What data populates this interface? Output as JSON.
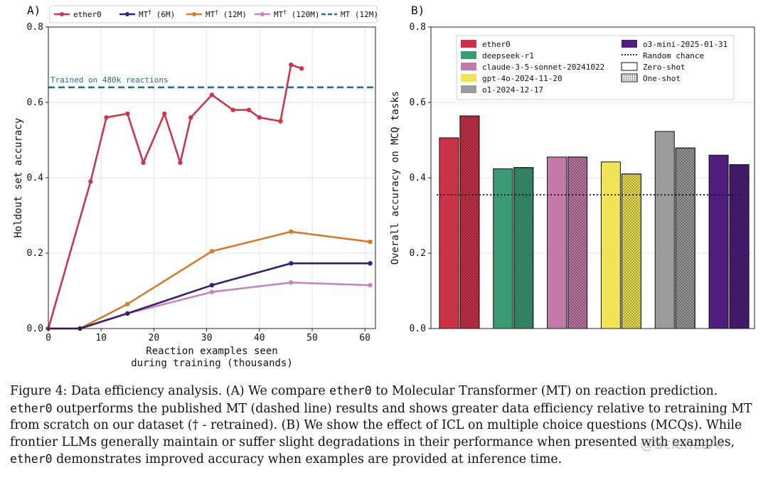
{
  "colors": {
    "ether0": "#c9374c",
    "mt6": "#3b1f6e",
    "mt12": "#d27a2e",
    "mt120": "#c586c0",
    "mt_ref": "#2b6a96"
  },
  "chart_data": [
    {
      "type": "line",
      "panel_label": "A)",
      "xlabel": "Reaction examples seen\nduring training (thousands)",
      "ylabel": "Holdout set accuracy",
      "xlim": [
        0,
        62
      ],
      "ylim": [
        0,
        0.8
      ],
      "xticks": [
        0,
        10,
        20,
        30,
        40,
        50,
        60
      ],
      "yticks": [
        0.0,
        0.2,
        0.4,
        0.6,
        0.8
      ],
      "grid": true,
      "legend_position": "top",
      "series": [
        {
          "name": "ether0",
          "key": "ether0",
          "color": "#c9374c",
          "x": [
            0,
            8,
            11,
            15,
            18,
            22,
            25,
            27,
            31,
            35,
            38,
            40,
            44,
            46,
            48
          ],
          "y": [
            0.0,
            0.39,
            0.56,
            0.57,
            0.44,
            0.57,
            0.44,
            0.56,
            0.62,
            0.58,
            0.58,
            0.56,
            0.55,
            0.7,
            0.69
          ]
        },
        {
          "name": "MT",
          "sup": "†",
          "suffix": " (6M)",
          "key": "mt6",
          "color": "#3b1f6e",
          "x": [
            0,
            6,
            15,
            31,
            46,
            61
          ],
          "y": [
            0.0,
            0.0,
            0.04,
            0.115,
            0.173,
            0.173
          ]
        },
        {
          "name": "MT",
          "sup": "†",
          "suffix": " (12M)",
          "key": "mt12",
          "color": "#d27a2e",
          "x": [
            0,
            6,
            15,
            31,
            46,
            61
          ],
          "y": [
            0.0,
            0.0,
            0.065,
            0.205,
            0.257,
            0.23
          ]
        },
        {
          "name": "MT",
          "sup": "†",
          "suffix": " (120M)",
          "key": "mt120",
          "color": "#c586c0",
          "x": [
            0,
            6,
            15,
            31,
            46,
            61
          ],
          "y": [
            0.0,
            0.0,
            0.04,
            0.097,
            0.122,
            0.115
          ]
        }
      ],
      "reference_line": {
        "name": "MT (12M)",
        "y": 0.64,
        "color": "#2b6a96",
        "annotation": "Trained on 480k reactions"
      }
    },
    {
      "type": "bar",
      "panel_label": "B)",
      "xlabel": "",
      "ylabel": "Overall accuracy on MCQ tasks",
      "ylim": [
        0,
        0.8
      ],
      "yticks": [
        0.0,
        0.2,
        0.4,
        0.6,
        0.8
      ],
      "grid": true,
      "legend_position": "top",
      "categories": [
        "ether0",
        "deepseek-r1",
        "claude-3-5-sonnet-20241022",
        "gpt-4o-2024-11-20",
        "o1-2024-12-17",
        "o3-mini-2025-01-31"
      ],
      "colors": [
        "#cc3348",
        "#3b9a73",
        "#c47aa8",
        "#efe356",
        "#9b9b9b",
        "#4e1e7c"
      ],
      "series": [
        {
          "name": "Zero-shot",
          "values": [
            0.506,
            0.424,
            0.455,
            0.442,
            0.523,
            0.46
          ]
        },
        {
          "name": "One-shot",
          "values": [
            0.564,
            0.427,
            0.455,
            0.41,
            0.479,
            0.435
          ]
        }
      ],
      "random_chance": {
        "name": "Random chance",
        "y": 0.355
      }
    }
  ],
  "caption": {
    "lines": [
      [
        {
          "t": "Figure 4: Data efficiency analysis. (A) We compare "
        },
        {
          "t": "ether0",
          "code": true
        },
        {
          "t": " to Molecular Transformer (MT) on reaction prediction."
        }
      ],
      [
        {
          "t": "ether0",
          "code": true
        },
        {
          "t": " outperforms the published MT (dashed line) results and shows greater data efficiency relative to retraining MT"
        }
      ],
      [
        {
          "t": "from scratch on our dataset († - retrained). (B) We show the effect of ICL on multiple choice questions (MCQs). While"
        }
      ],
      [
        {
          "t": "frontier LLMs generally maintain or suffer slight degradations in their performance when presented with examples,"
        }
      ],
      [
        {
          "t": "ether0",
          "code": true
        },
        {
          "t": " demonstrates improved accuracy when examples are provided at inference time."
        }
      ]
    ]
  },
  "watermark": "@ScienceAI"
}
